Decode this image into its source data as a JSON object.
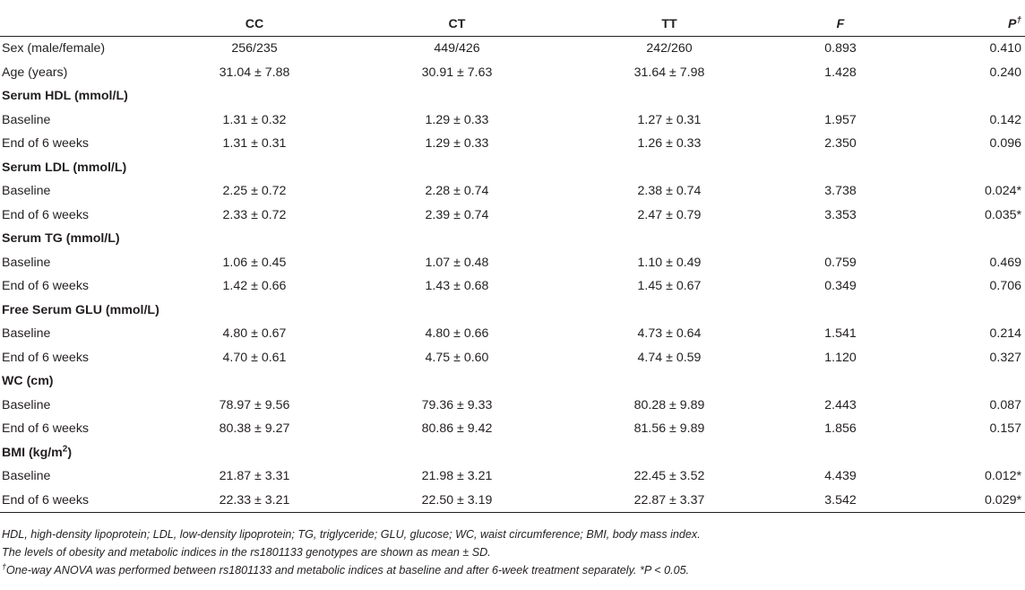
{
  "headers": [
    "",
    "CC",
    "CT",
    "TT",
    "F",
    "P",
    "†"
  ],
  "rows": [
    {
      "kind": "data",
      "label": "Sex (male/female)",
      "cells": [
        "256/235",
        "449/426",
        "242/260",
        "0.893",
        "0.410"
      ]
    },
    {
      "kind": "data",
      "label": "Age (years)",
      "cells": [
        "31.04 ± 7.88",
        "30.91 ± 7.63",
        "31.64 ± 7.98",
        "1.428",
        "0.240"
      ]
    },
    {
      "kind": "section",
      "label": "Serum HDL (mmol/L)",
      "cells": []
    },
    {
      "kind": "data",
      "label": "Baseline",
      "cells": [
        "1.31 ± 0.32",
        "1.29 ± 0.33",
        "1.27 ± 0.31",
        "1.957",
        "0.142"
      ]
    },
    {
      "kind": "data",
      "label": "End of 6 weeks",
      "cells": [
        "1.31 ± 0.31",
        "1.29 ± 0.33",
        "1.26 ± 0.33",
        "2.350",
        "0.096"
      ]
    },
    {
      "kind": "section",
      "label": "Serum LDL (mmol/L)",
      "cells": []
    },
    {
      "kind": "data",
      "label": "Baseline",
      "cells": [
        "2.25 ± 0.72",
        "2.28 ± 0.74",
        "2.38 ± 0.74",
        "3.738",
        "0.024*"
      ]
    },
    {
      "kind": "data",
      "label": "End of 6 weeks",
      "cells": [
        "2.33 ± 0.72",
        "2.39 ± 0.74",
        "2.47 ± 0.79",
        "3.353",
        "0.035*"
      ]
    },
    {
      "kind": "section",
      "label": "Serum TG (mmol/L)",
      "cells": []
    },
    {
      "kind": "data",
      "label": "Baseline",
      "cells": [
        "1.06 ± 0.45",
        "1.07 ± 0.48",
        "1.10 ± 0.49",
        "0.759",
        "0.469"
      ]
    },
    {
      "kind": "data",
      "label": "End of 6 weeks",
      "cells": [
        "1.42 ± 0.66",
        "1.43 ± 0.68",
        "1.45 ± 0.67",
        "0.349",
        "0.706"
      ]
    },
    {
      "kind": "section",
      "label": "Free Serum GLU (mmol/L)",
      "cells": []
    },
    {
      "kind": "data",
      "label": "Baseline",
      "cells": [
        "4.80 ± 0.67",
        "4.80 ± 0.66",
        "4.73 ± 0.64",
        "1.541",
        "0.214"
      ]
    },
    {
      "kind": "data",
      "label": "End of 6 weeks",
      "cells": [
        "4.70 ± 0.61",
        "4.75 ± 0.60",
        "4.74 ± 0.59",
        "1.120",
        "0.327"
      ]
    },
    {
      "kind": "section",
      "label": "WC (cm)",
      "cells": []
    },
    {
      "kind": "data",
      "label": "Baseline",
      "cells": [
        "78.97 ± 9.56",
        "79.36 ± 9.33",
        "80.28 ± 9.89",
        "2.443",
        "0.087"
      ]
    },
    {
      "kind": "data",
      "label": "End of 6 weeks",
      "cells": [
        "80.38 ± 9.27",
        "80.86 ± 9.42",
        "81.56 ± 9.89",
        "1.856",
        "0.157"
      ]
    },
    {
      "kind": "section",
      "label": "BMI (kg/m",
      "label_sup": "2",
      "label_tail": ")",
      "cells": []
    },
    {
      "kind": "data",
      "label": "Baseline",
      "cells": [
        "21.87 ± 3.31",
        "21.98 ± 3.21",
        "22.45 ± 3.52",
        "4.439",
        "0.012*"
      ]
    },
    {
      "kind": "data",
      "label": "End of 6 weeks",
      "cells": [
        "22.33 ± 3.21",
        "22.50 ± 3.19",
        "22.87 ± 3.37",
        "3.542",
        "0.029*"
      ]
    }
  ],
  "footnotes": {
    "abbrev": "HDL, high-density lipoprotein; LDL, low-density lipoprotein; TG, triglyceride; GLU, glucose; WC, waist circumference; BMI, body mass index.",
    "levels": "The levels of obesity and metabolic indices in the rs1801133 genotypes are shown as mean ± SD.",
    "anova_mark": "†",
    "anova": "One-way ANOVA was performed between rs1801133 and metabolic indices at baseline and after 6-week treatment separately. *P < 0.05."
  }
}
